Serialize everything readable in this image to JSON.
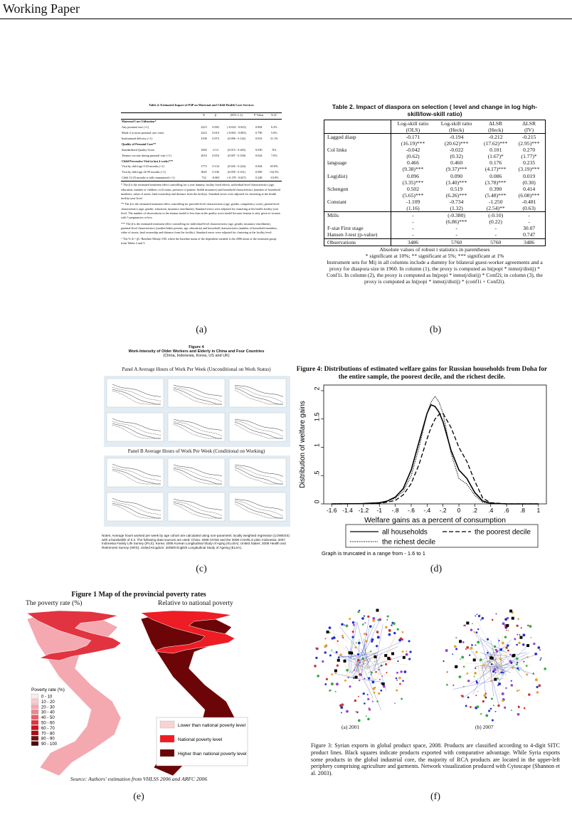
{
  "header": {
    "title": "Working Paper"
  },
  "panel_a": {
    "label": "(a)",
    "title": "Table 4: Estimated Impact of P4P on Maternal and Child Health Care Services",
    "columns": [
      "N",
      "β",
      "(95% C.I.)",
      "P-Value",
      "% Δ^"
    ],
    "sections": [
      {
        "heading": "Maternal Care Utilization*",
        "rows": [
          [
            "Any prenatal care (+1)",
            "2223",
            "0.002",
            "(-0.022 - 0.025)",
            "0.894",
            "0.2%"
          ],
          [
            "Made 4 or more prenatal care visits",
            "2223",
            "0.010",
            "(-0.063 - 0.083)",
            "0.790",
            "5.6%"
          ],
          [
            "Institutional delivery (+1)",
            "2108",
            "0.074",
            "(0.006 - 0.142)",
            "0.033",
            "21.1%"
          ]
        ]
      },
      {
        "heading": "Quality of Prenatal Care**",
        "rows": [
          [
            "Standardized Quality Score",
            "1683",
            "0.14",
            "(0.015 - 0.265)",
            "0.030",
            "NA"
          ],
          [
            "Tetanus vaccine during prenatal visit (+1)",
            "2010",
            "0.054",
            "(0.007 - 0.100)",
            "0.024",
            "7.6%"
          ]
        ]
      },
      {
        "heading": "Child Preventive Visit in last 4 weeks***",
        "rows": [
          [
            "Visit by child age 0-23 months (+1)",
            "1773",
            "0.134",
            "(0.045 - 0.224)",
            "0.004",
            "65.8%"
          ],
          [
            "Visit by child age 24-59 months (+1)",
            "3645",
            "0.106",
            "(0.050 - 0.161)",
            "0.000",
            "132.5%"
          ],
          [
            "Child 12-23 months is fully immunized (+1)",
            "732",
            "-0.065",
            "(-0.178 - 0.047)",
            "0.248",
            "-10.9%"
          ]
        ]
      }
    ],
    "notes": [
      "* The β is the estimated treatment effect controlling for a year dummy, facility fixed effects, individual-level characteristics (age, education, number of children, civil status, presence of partner, health insurance) and household characteristics (number of household members, value of assets, land ownership and distance from the facility). Standard errors were adjusted for clustering at the health facility-year level.",
      "** The β is the estimated treatment effect controlling for provider-level characteristics (age, gender, competency score), patient-level characteristics (age, gender, education, insurance enrollment). Standard errors were adjusted for clustering at the health facility-year level. The number of observations in the tetanus model is less than in the quality score model because tetanus is only given to women with 5 pregnancies or less.",
      "*** The β is the estimated treatment effect controlling for individual-level characteristics (age, gender, insurance enrollment), parental-level characteristics (mother/father present, age, education) and household characteristics (number of household members, value of assets, land ownership and distance from the facility). Standard errors were adjusted for clustering at the facility level.",
      "^ The % Δ = (β / Baseline Mean)×100, where the baseline mean of the dependent variable is the 2006 mean of the treatment group from Tables 2 and 3."
    ]
  },
  "panel_b": {
    "label": "(b)",
    "title": "Table 2. Impact of diaspora on selection ( level and change in log high-skill/low-skill ratio)",
    "columns": [
      "Log-skill ratio",
      "Log-skill ratio",
      "ΔLSR",
      "ΔLSR"
    ],
    "methods": [
      "(OLS)",
      "(Heck)",
      "(Heck)",
      "(IV)"
    ],
    "rows": [
      {
        "name": "Lagged diasp",
        "values": [
          "-0.171",
          "-0.194",
          "-0.212",
          "-0.215"
        ],
        "tstats": [
          "(16.19)***",
          "(20.62)***",
          "(17.62)***",
          "(2.95)***"
        ]
      },
      {
        "name": "Col links",
        "values": [
          "-0.042",
          "-0.022",
          "0.101",
          "0.270"
        ],
        "tstats": [
          "(0.62)",
          "(0.32)",
          "(1.67)*",
          "(1.77)*"
        ]
      },
      {
        "name": "language",
        "values": [
          "0.466",
          "0.460",
          "0.176",
          "0.235"
        ],
        "tstats": [
          "(9.38)***",
          "(9.37)***",
          "(4.17)***",
          "(3.19)***"
        ]
      },
      {
        "name": "Log(dist)",
        "values": [
          "0.096",
          "0.090",
          "0.086",
          "0.019"
        ],
        "tstats": [
          "(3.35)***",
          "(3.40)***",
          "(3.78)***",
          "(0.30)"
        ]
      },
      {
        "name": "Schengen",
        "values": [
          "0.502",
          "0.519",
          "0.390",
          "0.414"
        ],
        "tstats": [
          "(5.65)***",
          "(6.26)***",
          "(5.48)***",
          "(6.08)***"
        ]
      },
      {
        "name": "Constant",
        "values": [
          "-1.109",
          "-0.734",
          "-1.250",
          "-0.481"
        ],
        "tstats": [
          "(1.16)",
          "(1.32)",
          "(2.54)**",
          "(0.63)"
        ]
      },
      {
        "name": "Mills",
        "values": [
          "-",
          "(-0.380)",
          "(-0.10)",
          "-"
        ],
        "tstats": [
          "-",
          "(6.86)***",
          "(0.22)",
          "-"
        ]
      },
      {
        "name": "F-stat First stage",
        "values": [
          "-",
          "-",
          "-",
          "30.07"
        ]
      },
      {
        "name": "Hansen J-test (p-value)",
        "values": [
          "-",
          "-",
          "-",
          "0.747"
        ]
      },
      {
        "name": "Observations",
        "values": [
          "3486",
          "5760",
          "5760",
          "3486"
        ]
      }
    ],
    "notes": [
      "Absolute values of robust t statistics in parentheses",
      "* significant at 10%; ** significant at 5%; *** significant at 1%",
      "Instrument sets for Mij in all columns include a dummy for bilateral guest-worker agreements and a proxy for diaspora size in 1960. In column (1), the proxy is computed as ln(popi * inmstj/distij) * Conf1i. In column (2), the proxy is computed as ln(popi * inmstj/distij) * Conf2i; in column (3), the proxy is computed as ln(popi * inmstj/distij) * (conf1i + Conf2i)."
    ]
  },
  "panel_c": {
    "label": "(c)",
    "figure_label": "Figure 4",
    "title": "Work-Intensity of Older Workers and Elderly in China and Four Countries",
    "subtitle": "(China, Indonesia, Korea, US and UK)",
    "panel_a_title": "Panel A Average Hours of Work Per Week (Unconditional on Work Status)",
    "panel_b_title": "Panel B Average Hours of Work Per Week (Conditional on Working)",
    "notes": "Notes: Average hours worked per week by age cohort are calculated using non-parametric locally weighted regression (LOWESS) with a bandwidth of 0.3. The following data sources are used: China: 2008 CHNS and the 2008 CHARLS pilot; Indonesia: 2007 Indonesia Family Life Survey (IFLS); Korea: 2006 Korean Longitudinal Study of Aging (KLoSA); United States: 2008 Health and Retirement Survey (HRS); United Kingdom: 2008/9 English Longitudinal Study of Ageing (ELSA)."
  },
  "panel_d": {
    "label": "(d)",
    "chart_data": {
      "type": "line",
      "title": "Figure 4: Distributions of estimated welfare gains for Russian households from Doha for the entire sample, the poorest decile, and the richest decile.",
      "x_label": "Welfare gains as a percent of consumption",
      "y_label": "Distribution of welfare gains",
      "note": "Graph is truncated in a range from - 1.6 to 1",
      "x": [
        -1.6,
        -1.2,
        -1.0,
        -0.9,
        -0.8,
        -0.7,
        -0.6,
        -0.5,
        -0.4,
        -0.35,
        -0.3,
        -0.25,
        -0.2,
        -0.1,
        0,
        0.1,
        0.2,
        0.3,
        0.4,
        0.6,
        1.0
      ],
      "series": [
        {
          "name": "all households",
          "color": "#000000",
          "style": "solid",
          "values": [
            0,
            0.005,
            0.02,
            0.05,
            0.12,
            0.27,
            0.6,
            1.1,
            1.6,
            1.75,
            1.72,
            1.62,
            1.45,
            0.95,
            0.6,
            0.45,
            0.2,
            0.05,
            0.01,
            0,
            0
          ]
        },
        {
          "name": "the poorest decile",
          "color": "#000000",
          "style": "dashed",
          "values": [
            0,
            0.003,
            0.01,
            0.03,
            0.06,
            0.16,
            0.36,
            0.7,
            1.15,
            1.35,
            1.5,
            1.58,
            1.6,
            1.35,
            1.0,
            0.75,
            0.4,
            0.1,
            0.02,
            0,
            0
          ]
        },
        {
          "name": "the richest decile",
          "color": "#000000",
          "style": "dotted",
          "values": [
            0,
            0.005,
            0.02,
            0.05,
            0.1,
            0.22,
            0.5,
            1.0,
            1.6,
            1.8,
            1.9,
            1.8,
            1.6,
            0.9,
            0.45,
            0.35,
            0.15,
            0.03,
            0.005,
            0,
            0
          ]
        }
      ],
      "xlim": [
        -1.7,
        1.1
      ],
      "ylim": [
        0,
        2.1
      ],
      "xticks": [
        {
          "value": -1.6,
          "label": "-1.6"
        },
        {
          "value": -1.4,
          "label": "-1.4"
        },
        {
          "value": -1.2,
          "label": "-1.2"
        },
        -1,
        {
          "value": -0.8,
          "label": "-.8"
        },
        {
          "value": -0.6,
          "label": "-.6"
        },
        {
          "value": -0.4,
          "label": "-.4"
        },
        {
          "value": -0.2,
          "label": "-.2"
        },
        0,
        {
          "value": 0.2,
          "label": ".2"
        },
        {
          "value": 0.4,
          "label": ".4"
        },
        {
          "value": 0.6,
          "label": ".6"
        },
        {
          "value": 0.8,
          "label": ".8"
        },
        1
      ],
      "yticks": [
        0,
        {
          "value": 0.5,
          "label": ".5"
        },
        1,
        1.5,
        2
      ]
    }
  },
  "panel_e": {
    "label": "(e)",
    "title": "Figure 1 Map of the provincial poverty rates",
    "left_title": "The poverty rate (%)",
    "right_title": "Relative to national poverty",
    "legend_title": "Poverty rate (%)",
    "legend": [
      {
        "label": "0 - 10",
        "color": "#fde8ea"
      },
      {
        "label": "10 - 20",
        "color": "#f9ccd1"
      },
      {
        "label": "20 - 30",
        "color": "#f4a9b1"
      },
      {
        "label": "30 - 40",
        "color": "#ef8590"
      },
      {
        "label": "40 - 50",
        "color": "#e95e6a"
      },
      {
        "label": "50 - 60",
        "color": "#e23340"
      },
      {
        "label": "60 - 70",
        "color": "#d0111d"
      },
      {
        "label": "70 - 80",
        "color": "#a80b14"
      },
      {
        "label": "80 - 90",
        "color": "#7a0a0f"
      },
      {
        "label": "90 - 100",
        "color": "#4e0508"
      }
    ],
    "right_legend": [
      {
        "label": "Lower than national poverty level",
        "color": "#f8d3d6"
      },
      {
        "label": "National poverty level",
        "color": "#ee1c25"
      },
      {
        "label": "Higher than national poverty level",
        "color": "#6b0508"
      }
    ],
    "source": "Source: Authors' estimation from VHLSS 2006 and ARFC 2006"
  },
  "panel_f": {
    "label": "(f)",
    "sub_left": "(a) 2001",
    "sub_right": "(b) 2007",
    "caption": "Figure 3: Syrian exports in global product space, 2008. Products are classified according to 4-digit SITC product lines. Black squares indicate products exported with comparative advantage. While Syria exports some products in the global industrial core, the majority of RCA products are located in the upper-left periphery comprising agriculture and garments. Network visualization produced with Cytoscape (Shannon et al. 2003)."
  }
}
